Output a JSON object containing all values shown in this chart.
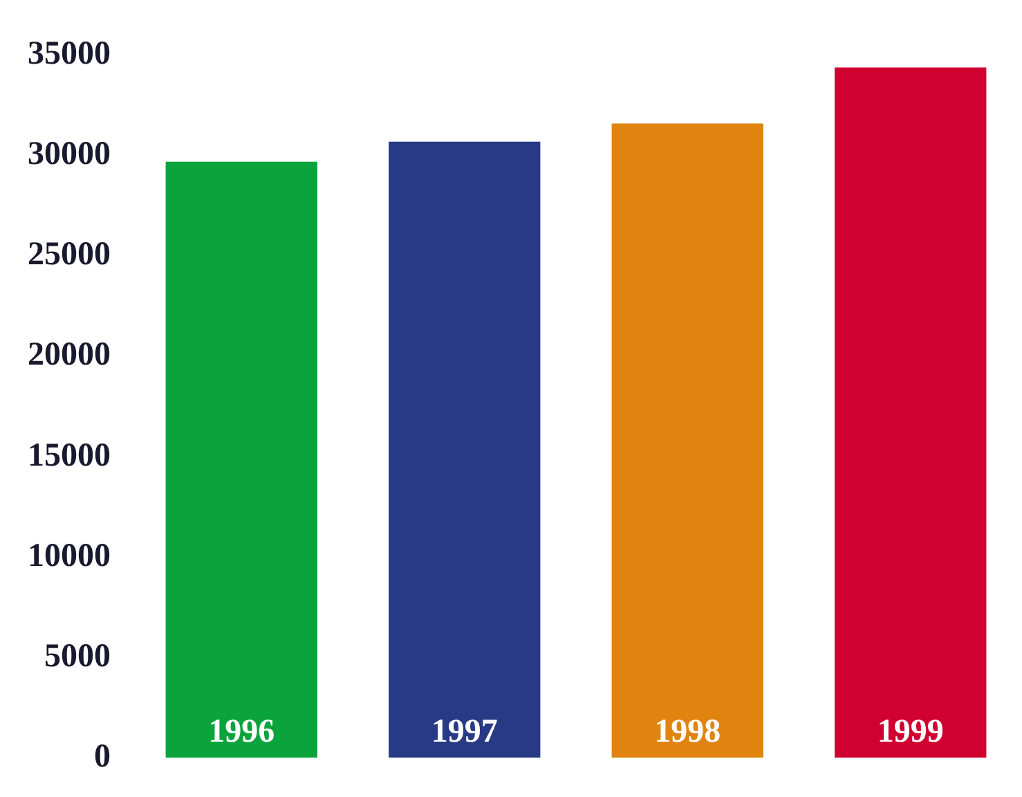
{
  "chart_data": {
    "type": "bar",
    "categories": [
      "1996",
      "1997",
      "1998",
      "1999"
    ],
    "values": [
      29700,
      30700,
      31600,
      34400
    ],
    "colors": [
      "#0aa33c",
      "#283a85",
      "#e0840f",
      "#d00030"
    ],
    "ylim": [
      0,
      35000
    ],
    "yticks": [
      0,
      5000,
      10000,
      15000,
      20000,
      25000,
      30000,
      35000
    ],
    "grid": false,
    "legend": false
  }
}
